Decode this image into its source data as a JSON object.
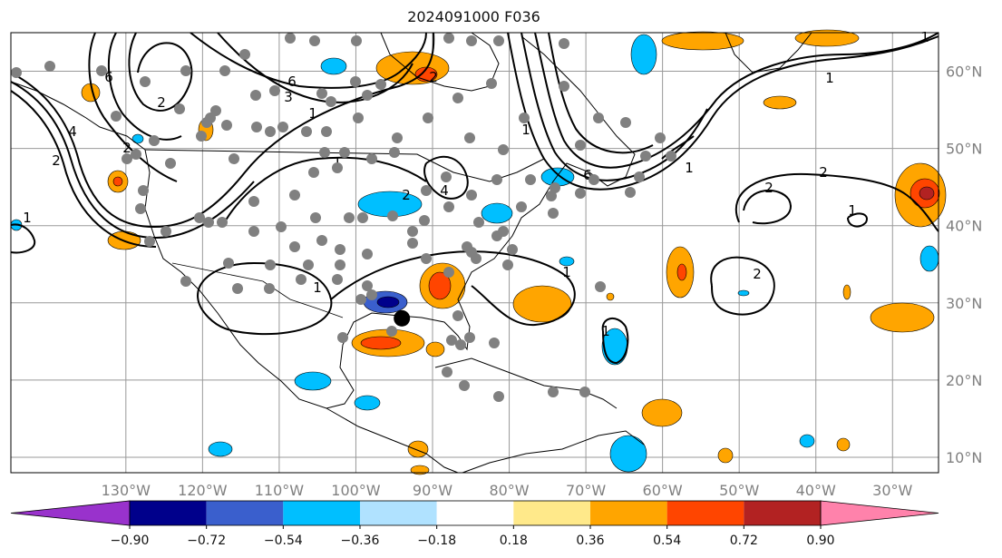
{
  "title": "2024091000 F036",
  "map": {
    "projection": "PlateCarree",
    "extent": {
      "lon_min": -145,
      "lon_max": -24,
      "lat_min": 8,
      "lat_max": 65
    },
    "lon_ticks": [
      "130°W",
      "120°W",
      "110°W",
      "100°W",
      "90°W",
      "80°W",
      "70°W",
      "60°W",
      "50°W",
      "40°W",
      "30°W"
    ],
    "lat_ticks": [
      "60°N",
      "50°N",
      "40°N",
      "30°N",
      "20°N",
      "10°N"
    ],
    "gridlines": true,
    "colors": {
      "land": "#ffffff",
      "coast": "#000000",
      "grid": "#999999",
      "tick_label": "#808080"
    }
  },
  "contours": {
    "color": "#000000",
    "labels": [
      "6",
      "3",
      "2",
      "1",
      "6",
      "2",
      "1",
      "2",
      "1",
      "1",
      "2",
      "2",
      "1",
      "2",
      "1",
      "6",
      "1",
      "1",
      "4",
      "2",
      "1",
      "1",
      "2",
      "1",
      "4"
    ]
  },
  "stations": {
    "color": "#808080"
  },
  "marker": {
    "color": "#000000",
    "lon": -94,
    "lat": 28
  },
  "colorbar": {
    "ticks": [
      "−0.90",
      "−0.72",
      "−0.54",
      "−0.36",
      "−0.18",
      "0.18",
      "0.36",
      "0.54",
      "0.72",
      "0.90"
    ],
    "colors": [
      "#9932cc",
      "#00008b",
      "#3a5fcd",
      "#00bfff",
      "#b0e2ff",
      "#ffffff",
      "#ffe98a",
      "#ffa500",
      "#ff4500",
      "#b22222",
      "#ff82ab"
    ]
  }
}
